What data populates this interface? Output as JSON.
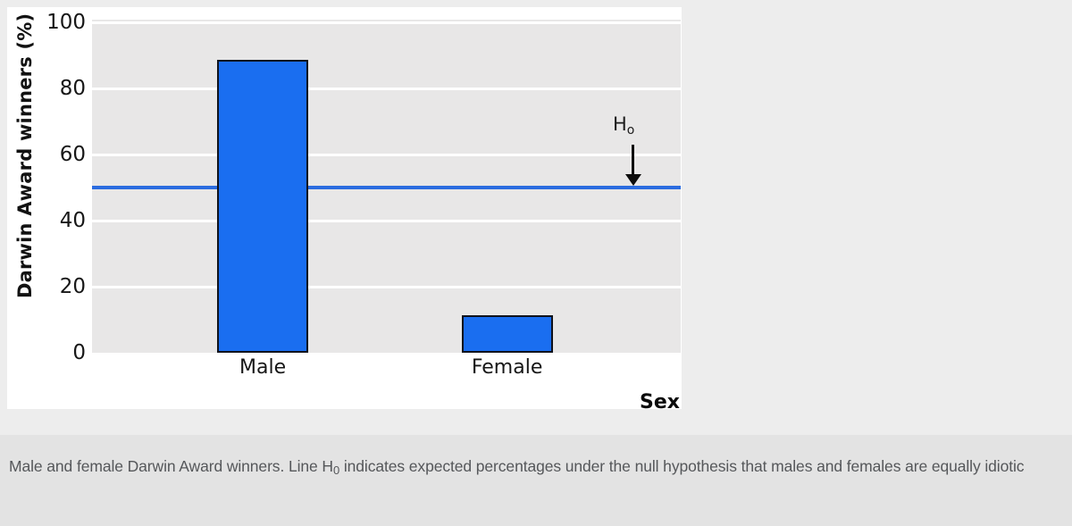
{
  "chart_data": {
    "type": "bar",
    "title": "",
    "categories": [
      "Male",
      "Female"
    ],
    "values": [
      88.7,
      11.3
    ],
    "xlabel": "Sex",
    "ylabel": "Darwin Award winners (%)",
    "ylim": [
      0,
      100
    ],
    "yticks": [
      0,
      20,
      40,
      60,
      80,
      100
    ],
    "grid": "horizontal white gridlines on light-gray plot background",
    "legend": "none",
    "colors": {
      "bar_fill": "#1a6ef0",
      "bar_border": "#10131c",
      "reference_line": "#2b6ce0",
      "plot_background": "#e8e7e7",
      "panel_background": "#ffffff",
      "page_background": "#ededed",
      "caption_background": "#e3e3e3",
      "caption_text": "#55575a"
    },
    "reference_line": {
      "value": 50,
      "label": "H",
      "sublabel": "o",
      "meaning": "null hypothesis expected percentage"
    }
  },
  "caption": {
    "prefix": "Male and female Darwin Award winners. Line H",
    "sub": "0",
    "suffix": " indicates expected percentages under the null hypothesis that males and females are equally idiotic"
  }
}
